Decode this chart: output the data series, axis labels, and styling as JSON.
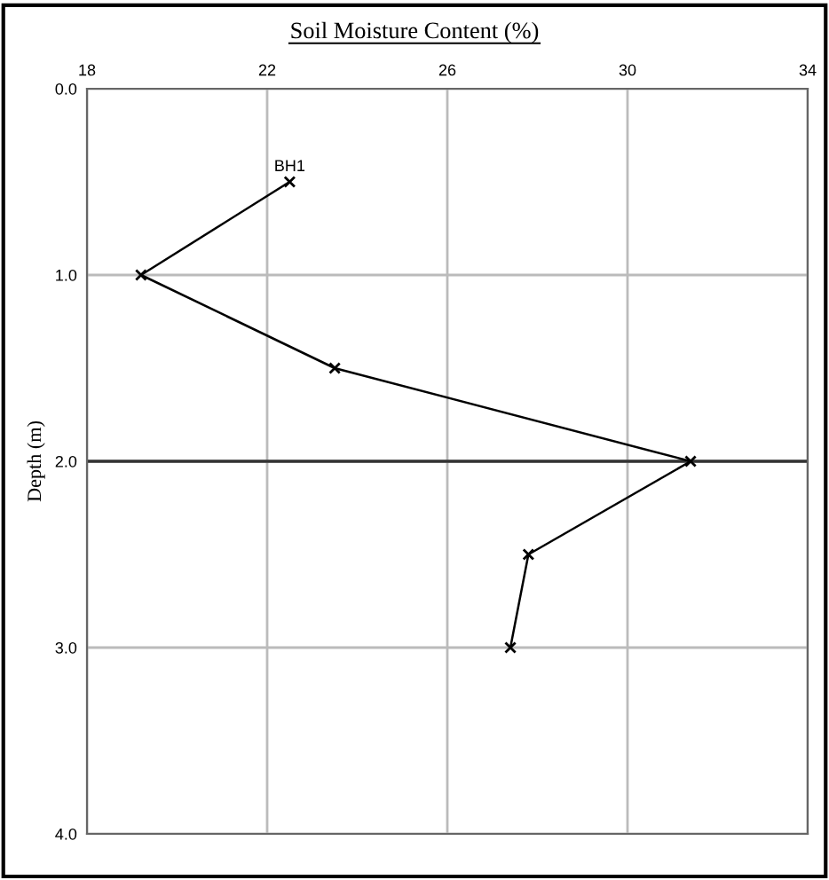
{
  "chart_data": {
    "type": "line",
    "title": "Soil Moisture Content (%)",
    "ylabel": "Depth (m)",
    "series": [
      {
        "name": "BH1",
        "color": "#000000",
        "x": [
          22.5,
          19.2,
          23.5,
          31.4,
          27.8,
          27.4
        ],
        "values": [
          0.5,
          1.0,
          1.5,
          2.0,
          2.5,
          3.0
        ]
      }
    ],
    "xlim": [
      18,
      34
    ],
    "xticks": [
      18,
      22,
      26,
      30,
      34
    ],
    "ylim": [
      4,
      0
    ],
    "yticks": [
      {
        "value": 0,
        "label": "0.0"
      },
      {
        "value": 1,
        "label": "1.0"
      },
      {
        "value": 2,
        "label": "2.0"
      },
      {
        "value": 3,
        "label": "3.0"
      },
      {
        "value": 4,
        "label": "4.0"
      }
    ],
    "ref_lines": [
      {
        "axis": "y",
        "value": 2.0,
        "color": "#333333"
      }
    ],
    "grid": true,
    "marker": "cross",
    "line_style": "solid",
    "legend": false
  }
}
